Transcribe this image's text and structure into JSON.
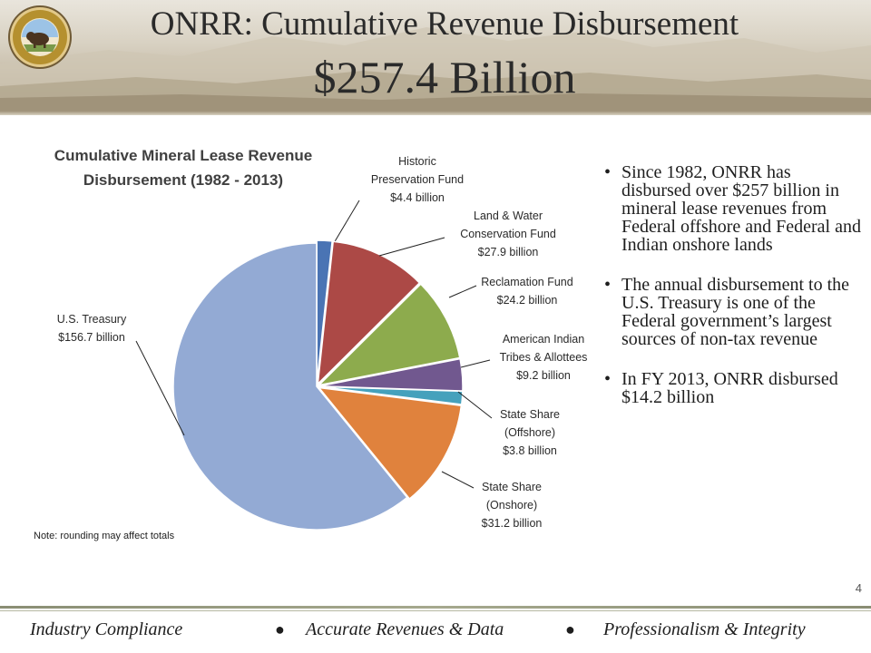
{
  "header": {
    "title_line1": "ONRR: Cumulative Revenue Disbursement",
    "title_line2": "$257.4 Billion",
    "seal_icon": "doi-seal-icon"
  },
  "chart_data": {
    "type": "pie",
    "title": "Cumulative Mineral Lease Revenue Disbursement (1982 - 2013)",
    "title_lines": [
      "Cumulative Mineral Lease Revenue",
      "Disbursement (1982 - 2013)"
    ],
    "note": "Note: rounding may affect totals",
    "slices": [
      {
        "label_lines": [
          "Historic",
          "Preservation Fund",
          "$4.4 billion"
        ],
        "value": 4.4,
        "color": "#4a74b4"
      },
      {
        "label_lines": [
          "Land & Water",
          "Conservation Fund",
          "$27.9 billion"
        ],
        "value": 27.9,
        "color": "#ac4946"
      },
      {
        "label_lines": [
          "Reclamation Fund",
          "$24.2 billion"
        ],
        "value": 24.2,
        "color": "#8dab4d"
      },
      {
        "label_lines": [
          "American Indian",
          "Tribes & Allottees",
          "$9.2 billion"
        ],
        "value": 9.2,
        "color": "#71588f"
      },
      {
        "label_lines": [
          "State Share",
          "(Offshore)",
          "$3.8 billion"
        ],
        "value": 3.8,
        "color": "#45a1bc"
      },
      {
        "label_lines": [
          "State Share",
          "(Onshore)",
          "$31.2 billion"
        ],
        "value": 31.2,
        "color": "#e0823d"
      },
      {
        "label_lines": [
          "U.S. Treasury",
          "$156.7 billion"
        ],
        "value": 156.7,
        "color": "#93aad4"
      }
    ]
  },
  "bullets": [
    "Since 1982, ONRR has disbursed over $257 billion in mineral lease revenues from Federal offshore and Federal and Indian onshore lands",
    "The annual disbursement to the U.S. Treasury is one of the Federal government’s largest sources of non-tax revenue",
    "In FY 2013, ONRR disbursed $14.2 billion"
  ],
  "page_number": "4",
  "footer": {
    "item1": "Industry Compliance",
    "item2": "Accurate Revenues & Data",
    "item3": "Professionalism & Integrity"
  }
}
